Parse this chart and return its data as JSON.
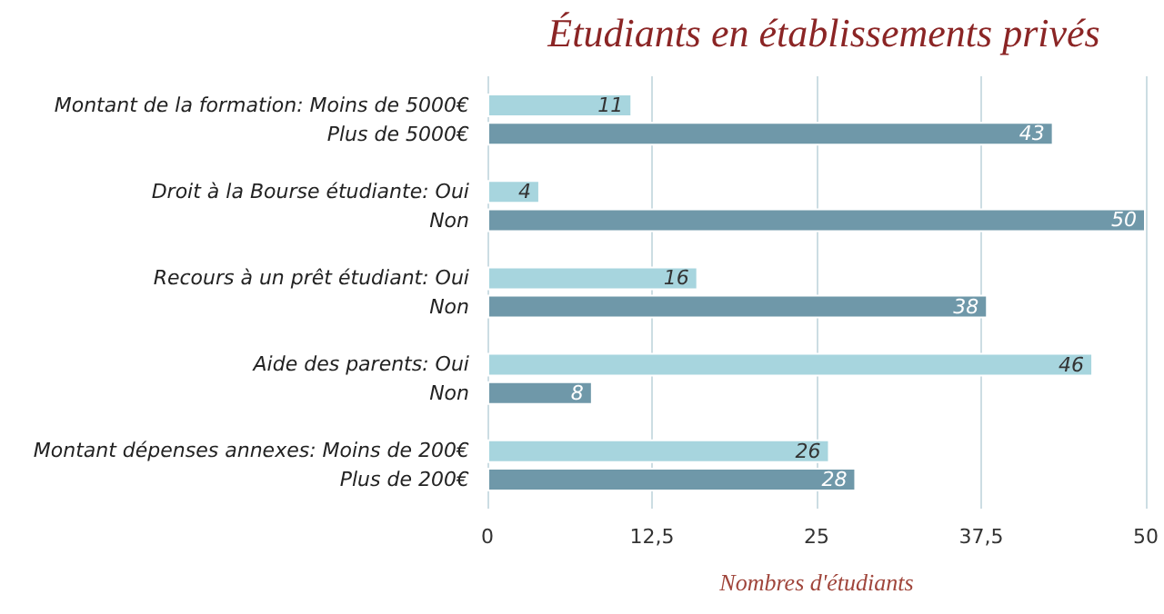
{
  "chart_data": {
    "type": "bar",
    "orientation": "horizontal",
    "title": "Étudiants en établissements privés",
    "xlabel": "Nombres d'étudiants",
    "categories": [
      "Montant de la formation: Moins de 5000€\nPlus de 5000€",
      "Droit à la Bourse étudiante: Oui\nNon",
      "Recours à un prêt étudiant: Oui\nNon",
      "Aide des parents: Oui\nNon",
      "Montant dépenses annexes: Moins de 200€\nPlus de 200€"
    ],
    "series": [
      {
        "color": "#a7d5de",
        "values": [
          11,
          4,
          16,
          46,
          26
        ]
      },
      {
        "color": "#6f98a9",
        "values": [
          43,
          50,
          38,
          8,
          28
        ]
      }
    ],
    "xlim": [
      0,
      50
    ],
    "xticks": [
      0,
      {
        "value": 12.5,
        "label": "12,5"
      },
      25,
      {
        "value": 37.5,
        "label": "37,5"
      },
      50
    ],
    "grid": "x",
    "data_labels": true
  }
}
